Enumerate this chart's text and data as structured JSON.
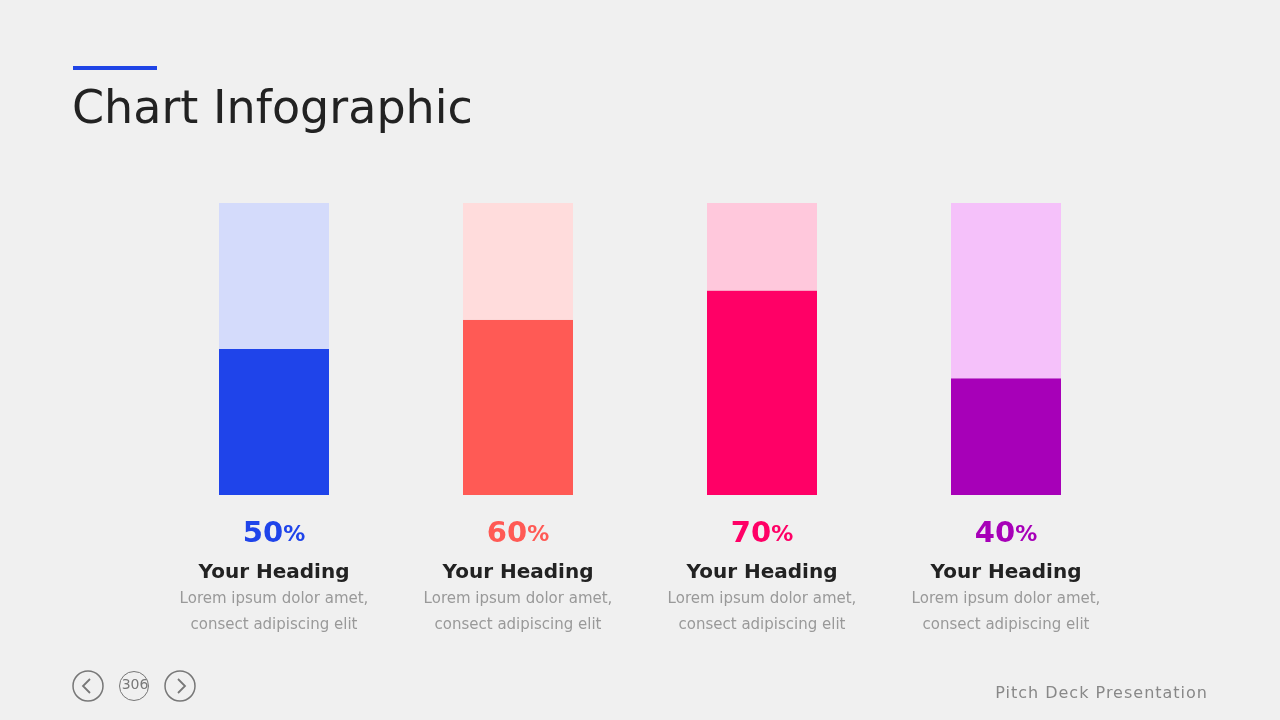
{
  "chart_data": {
    "type": "bar",
    "title": "Chart Infographic",
    "categories": [
      "Your Heading",
      "Your Heading",
      "Your Heading",
      "Your Heading"
    ],
    "stacked": true,
    "ylim": [
      0,
      100
    ],
    "tick_labels": "x",
    "series": [
      {
        "colors": [
          "#1f44ea",
          "#ff5a55",
          "#ff0066",
          "#a700b8"
        ],
        "values": [
          50,
          60,
          70,
          40
        ],
        "value_labels": [
          "50%",
          "60%",
          "70%",
          "40%"
        ]
      },
      {
        "colors": [
          "#d4dbfb",
          "#ffdcdc",
          "#ffc8dc",
          "#f5c1fa"
        ],
        "values": [
          50,
          40,
          30,
          60
        ]
      }
    ],
    "annotations": [
      "Lorem ipsum dolor amet,\nconsect adipiscing elit",
      "Lorem ipsum dolor amet,\nconsect adipiscing elit",
      "Lorem ipsum dolor amet,\nconsect adipiscing elit",
      "Lorem ipsum dolor amet,\nconsect adipiscing elit",
      "306",
      "Pitch Deck Presentation"
    ]
  }
}
